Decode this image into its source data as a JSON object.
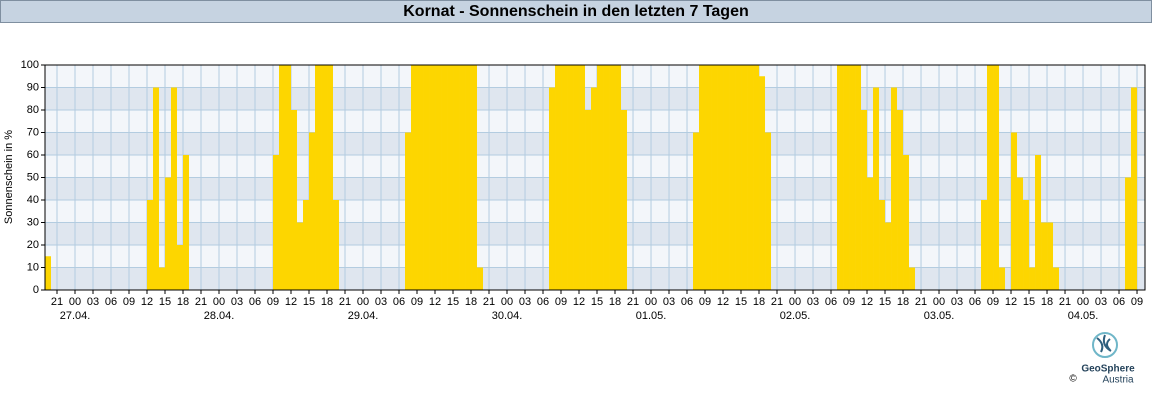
{
  "chart_data": {
    "type": "bar",
    "title": "Kornat - Sonnenschein in den letzten 7 Tagen",
    "y_label": "Sonnenschein in %",
    "color": "#fdd600",
    "xlim": [
      -5,
      178.33
    ],
    "ylim": [
      0,
      100
    ],
    "yticks": [
      0,
      10,
      20,
      30,
      40,
      50,
      60,
      70,
      80,
      90,
      100
    ],
    "grid": true,
    "xticks": [
      {
        "value": -3,
        "label": "21"
      },
      {
        "value": 0,
        "label": "00"
      },
      {
        "value": 3,
        "label": "03"
      },
      {
        "value": 6,
        "label": "06"
      },
      {
        "value": 9,
        "label": "09"
      },
      {
        "value": 12,
        "label": "12"
      },
      {
        "value": 15,
        "label": "15"
      },
      {
        "value": 18,
        "label": "18"
      },
      {
        "value": 21,
        "label": "21"
      },
      {
        "value": 24,
        "label": "00"
      },
      {
        "value": 27,
        "label": "03"
      },
      {
        "value": 30,
        "label": "06"
      },
      {
        "value": 33,
        "label": "09"
      },
      {
        "value": 36,
        "label": "12"
      },
      {
        "value": 39,
        "label": "15"
      },
      {
        "value": 42,
        "label": "18"
      },
      {
        "value": 45,
        "label": "21"
      },
      {
        "value": 48,
        "label": "00"
      },
      {
        "value": 51,
        "label": "03"
      },
      {
        "value": 54,
        "label": "06"
      },
      {
        "value": 57,
        "label": "09"
      },
      {
        "value": 60,
        "label": "12"
      },
      {
        "value": 63,
        "label": "15"
      },
      {
        "value": 66,
        "label": "18"
      },
      {
        "value": 69,
        "label": "21"
      },
      {
        "value": 72,
        "label": "00"
      },
      {
        "value": 75,
        "label": "03"
      },
      {
        "value": 78,
        "label": "06"
      },
      {
        "value": 81,
        "label": "09"
      },
      {
        "value": 84,
        "label": "12"
      },
      {
        "value": 87,
        "label": "15"
      },
      {
        "value": 90,
        "label": "18"
      },
      {
        "value": 93,
        "label": "21"
      },
      {
        "value": 96,
        "label": "00"
      },
      {
        "value": 99,
        "label": "03"
      },
      {
        "value": 102,
        "label": "06"
      },
      {
        "value": 105,
        "label": "09"
      },
      {
        "value": 108,
        "label": "12"
      },
      {
        "value": 111,
        "label": "15"
      },
      {
        "value": 114,
        "label": "18"
      },
      {
        "value": 117,
        "label": "21"
      },
      {
        "value": 120,
        "label": "00"
      },
      {
        "value": 123,
        "label": "03"
      },
      {
        "value": 126,
        "label": "06"
      },
      {
        "value": 129,
        "label": "09"
      },
      {
        "value": 132,
        "label": "12"
      },
      {
        "value": 135,
        "label": "15"
      },
      {
        "value": 138,
        "label": "18"
      },
      {
        "value": 141,
        "label": "21"
      },
      {
        "value": 144,
        "label": "00"
      },
      {
        "value": 147,
        "label": "03"
      },
      {
        "value": 150,
        "label": "06"
      },
      {
        "value": 153,
        "label": "09"
      },
      {
        "value": 156,
        "label": "12"
      },
      {
        "value": 159,
        "label": "15"
      },
      {
        "value": 162,
        "label": "18"
      },
      {
        "value": 165,
        "label": "21"
      },
      {
        "value": 168,
        "label": "00"
      },
      {
        "value": 171,
        "label": "03"
      },
      {
        "value": 174,
        "label": "06"
      },
      {
        "value": 177,
        "label": "09"
      }
    ],
    "day_labels": [
      {
        "value": 0,
        "label": "27.04."
      },
      {
        "value": 24,
        "label": "28.04."
      },
      {
        "value": 48,
        "label": "29.04."
      },
      {
        "value": 72,
        "label": "30.04."
      },
      {
        "value": 96,
        "label": "01.05."
      },
      {
        "value": 120,
        "label": "02.05."
      },
      {
        "value": 144,
        "label": "03.05."
      },
      {
        "value": 168,
        "label": "04.05."
      }
    ],
    "x": [
      -5,
      -4,
      -3,
      -2,
      -1,
      0,
      1,
      2,
      3,
      4,
      5,
      6,
      7,
      8,
      9,
      10,
      11,
      12,
      13,
      14,
      15,
      16,
      17,
      18,
      19,
      20,
      21,
      22,
      23,
      24,
      25,
      26,
      27,
      28,
      29,
      30,
      31,
      32,
      33,
      34,
      35,
      36,
      37,
      38,
      39,
      40,
      41,
      42,
      43,
      44,
      45,
      46,
      47,
      48,
      49,
      50,
      51,
      52,
      53,
      54,
      55,
      56,
      57,
      58,
      59,
      60,
      61,
      62,
      63,
      64,
      65,
      66,
      67,
      68,
      69,
      70,
      71,
      72,
      73,
      74,
      75,
      76,
      77,
      78,
      79,
      80,
      81,
      82,
      83,
      84,
      85,
      86,
      87,
      88,
      89,
      90,
      91,
      92,
      93,
      94,
      95,
      96,
      97,
      98,
      99,
      100,
      101,
      102,
      103,
      104,
      105,
      106,
      107,
      108,
      109,
      110,
      111,
      112,
      113,
      114,
      115,
      116,
      117,
      118,
      119,
      120,
      121,
      122,
      123,
      124,
      125,
      126,
      127,
      128,
      129,
      130,
      131,
      132,
      133,
      134,
      135,
      136,
      137,
      138,
      139,
      140,
      141,
      142,
      143,
      144,
      145,
      146,
      147,
      148,
      149,
      150,
      151,
      152,
      153,
      154,
      155,
      156,
      157,
      158,
      159,
      160,
      161,
      162,
      163,
      164,
      165,
      166,
      167,
      168,
      169,
      170,
      171,
      172,
      173,
      174,
      175,
      176,
      177
    ],
    "values": [
      15,
      0,
      0,
      0,
      0,
      0,
      0,
      0,
      0,
      0,
      0,
      0,
      0,
      0,
      0,
      0,
      0,
      40,
      90,
      10,
      50,
      90,
      20,
      60,
      0,
      0,
      0,
      0,
      0,
      0,
      0,
      0,
      0,
      0,
      0,
      0,
      0,
      0,
      60,
      100,
      100,
      80,
      30,
      40,
      70,
      100,
      100,
      100,
      40,
      0,
      0,
      0,
      0,
      0,
      0,
      0,
      0,
      0,
      0,
      0,
      70,
      100,
      100,
      100,
      100,
      100,
      100,
      100,
      100,
      100,
      100,
      100,
      10,
      0,
      0,
      0,
      0,
      0,
      0,
      0,
      0,
      0,
      0,
      0,
      90,
      100,
      100,
      100,
      100,
      100,
      80,
      90,
      100,
      100,
      100,
      100,
      80,
      0,
      0,
      0,
      0,
      0,
      0,
      0,
      0,
      0,
      0,
      0,
      70,
      100,
      100,
      100,
      100,
      100,
      100,
      100,
      100,
      100,
      100,
      95,
      70,
      0,
      0,
      0,
      0,
      0,
      0,
      0,
      0,
      0,
      0,
      0,
      100,
      100,
      100,
      100,
      80,
      50,
      90,
      40,
      30,
      90,
      80,
      60,
      10,
      0,
      0,
      0,
      0,
      0,
      0,
      0,
      0,
      0,
      0,
      0,
      40,
      100,
      100,
      10,
      0,
      70,
      50,
      40,
      10,
      60,
      30,
      30,
      10,
      0,
      0,
      0,
      0,
      0,
      0,
      0,
      0,
      0,
      0,
      0,
      50,
      90,
      0
    ]
  },
  "logo": {
    "name": "GeoSphere",
    "country": "Austria",
    "copyright": "©"
  }
}
